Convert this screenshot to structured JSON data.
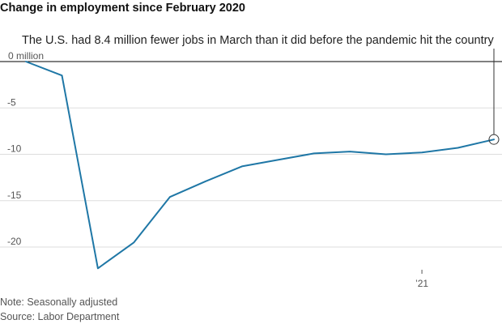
{
  "title": "Change in employment since February 2020",
  "annotation": "The U.S. had 8.4 million fewer jobs in March than it did before the pandemic hit the country",
  "notes": {
    "seasonal": "Note: Seasonally adjusted",
    "source": "Source: Labor Department"
  },
  "colors": {
    "line": "#1f77a6",
    "grid": "#dddddd",
    "zero_line": "#000000",
    "marker_stroke": "#333333"
  },
  "chart_data": {
    "type": "line",
    "title": "Change in employment since February 2020",
    "xlabel": "",
    "ylabel": "",
    "x": [
      "2020-02",
      "2020-03",
      "2020-04",
      "2020-05",
      "2020-06",
      "2020-07",
      "2020-08",
      "2020-09",
      "2020-10",
      "2020-11",
      "2020-12",
      "2021-01",
      "2021-02",
      "2021-03"
    ],
    "series": [
      {
        "values": [
          0,
          -1.5,
          -22.3,
          -19.5,
          -14.6,
          -12.9,
          -11.3,
          -10.6,
          -9.9,
          -9.7,
          -10.0,
          -9.8,
          -9.3,
          -8.4
        ]
      }
    ],
    "ylim": [
      -22.5,
      0
    ],
    "yticks": [
      {
        "value": 0,
        "label": "0 million"
      },
      {
        "value": -5,
        "label": "-5"
      },
      {
        "value": -10,
        "label": "-10"
      },
      {
        "value": -15,
        "label": "-15"
      },
      {
        "value": -20,
        "label": "-20"
      }
    ],
    "xticks": [
      {
        "x": "2021-01",
        "label": "’21"
      }
    ],
    "grid": true,
    "highlight": {
      "x": "2021-03",
      "value": -8.4
    }
  }
}
